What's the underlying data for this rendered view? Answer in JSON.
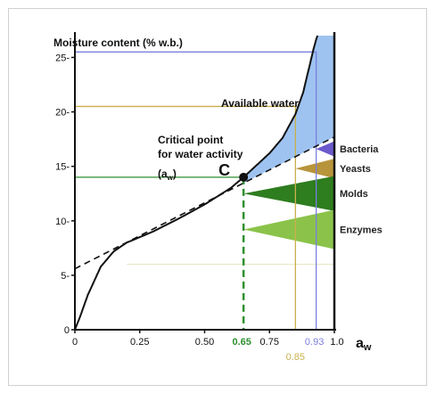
{
  "chart_data": {
    "type": "line",
    "ylabel": "Moisture content (% w.b.)",
    "xlabel_main": "a",
    "xlabel_sub": "w",
    "xlim": [
      0,
      1.0
    ],
    "ylim": [
      0,
      27
    ],
    "x_ticks": [
      0,
      0.25,
      0.5,
      0.75,
      1.0
    ],
    "x_tick_labels": [
      "0",
      "0.25",
      "0.50",
      "0.75",
      "1.0"
    ],
    "y_ticks": [
      0,
      5,
      10,
      15,
      20,
      25
    ],
    "y_tick_labels": [
      "0",
      "5-",
      "10-",
      "15-",
      "20-",
      "25-"
    ],
    "sorption_curve": {
      "x": [
        0.0,
        0.02,
        0.05,
        0.1,
        0.15,
        0.2,
        0.3,
        0.4,
        0.5,
        0.6,
        0.65,
        0.7,
        0.75,
        0.8,
        0.85,
        0.88,
        0.9,
        0.92,
        0.94
      ],
      "y": [
        0.0,
        1.2,
        3.2,
        5.8,
        7.2,
        8.0,
        9.0,
        10.2,
        11.5,
        13.0,
        14.0,
        15.1,
        16.2,
        17.6,
        19.8,
        21.8,
        23.8,
        25.8,
        27.5
      ]
    },
    "tangent_line": {
      "x": [
        0.0,
        1.0
      ],
      "y": [
        5.6,
        17.7
      ]
    },
    "critical_point": {
      "label": "C",
      "x": 0.65,
      "y": 14.0,
      "text_line1": "Critical point",
      "text_line2": "for water activity",
      "text_line3_main": "(a",
      "text_line3_sub": "w",
      "text_line3_end": ")"
    },
    "available_water_label": "Available water",
    "reference_lines": [
      {
        "y": 25.5,
        "x": 0.93,
        "color": "#7b7fe0"
      },
      {
        "y": 20.5,
        "x": 0.85,
        "color": "#c9b04c"
      },
      {
        "y": 14.0,
        "x": 0.65,
        "color": "#2f8f2f"
      }
    ],
    "x_markers": [
      {
        "x": 0.65,
        "label": "0.65",
        "color": "#2f8f2f",
        "style": "dashed"
      },
      {
        "x": 0.85,
        "label": "0.85",
        "color": "#c9b04c",
        "style": "solid"
      },
      {
        "x": 0.93,
        "label": "0.93",
        "color": "#7b7fe0",
        "style": "solid"
      }
    ],
    "wedges": [
      {
        "label": "Bacteria",
        "y_center": 16.6,
        "half_height": 0.7,
        "x_start": 0.93,
        "color": "#6a5acd"
      },
      {
        "label": "Yeasts",
        "y_center": 14.8,
        "half_height": 0.9,
        "x_start": 0.85,
        "color": "#b8943a"
      },
      {
        "label": "Molds",
        "y_center": 12.5,
        "half_height": 1.6,
        "x_start": 0.65,
        "color": "#2e7d1f"
      },
      {
        "label": "Enzymes",
        "y_center": 9.2,
        "half_height": 1.8,
        "x_start": 0.65,
        "color": "#8bc34a"
      }
    ],
    "enzyme_baseline_y": 6.0,
    "enzyme_baseline_x_start": 0.2
  }
}
